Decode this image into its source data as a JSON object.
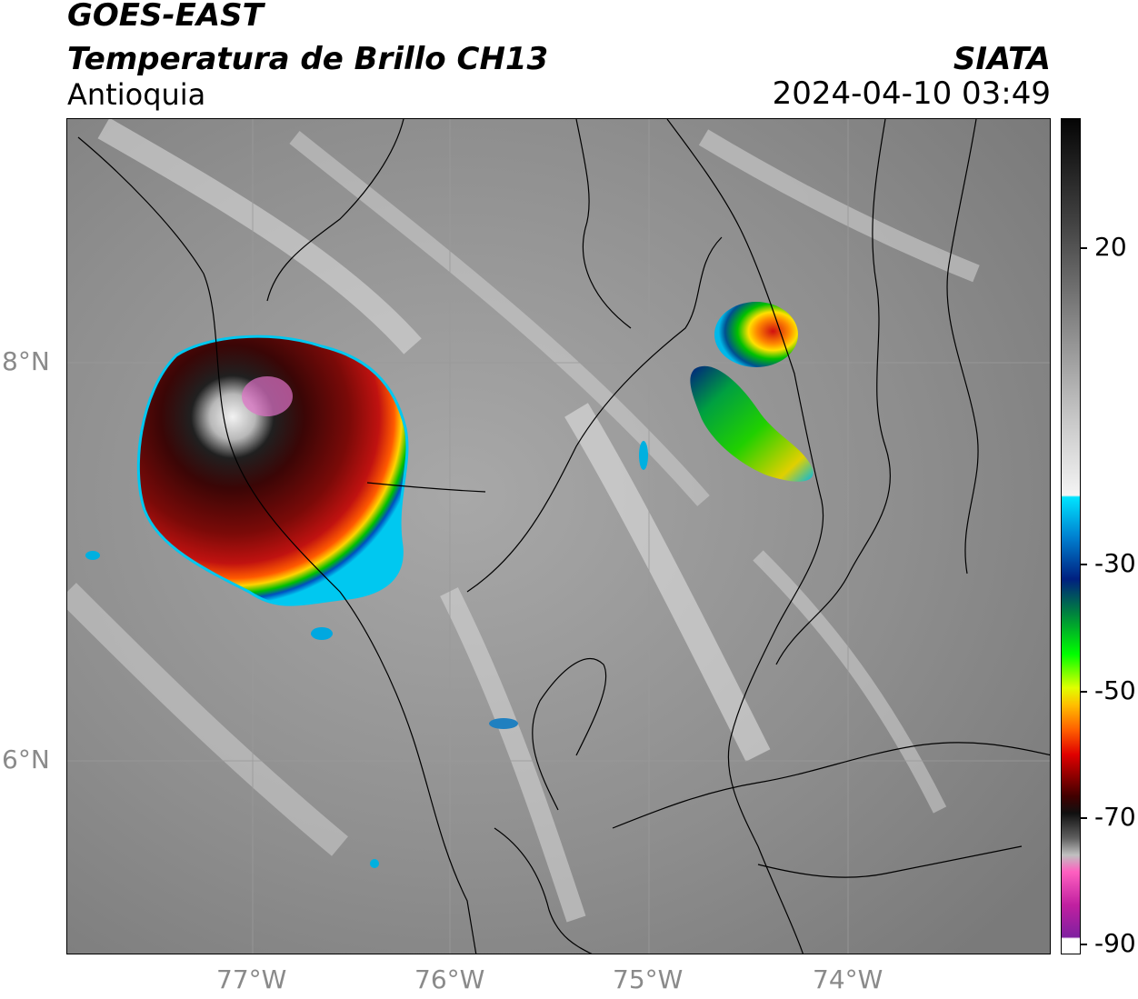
{
  "header": {
    "satellite": "GOES-EAST",
    "product": "Temperatura de Brillo CH13",
    "region": "Antioquia",
    "agency": "SIATA",
    "datetime": "2024-04-10 03:49"
  },
  "map": {
    "lat_ticks": [
      {
        "value": 8,
        "label": "8°N"
      },
      {
        "value": 6,
        "label": "6°N"
      }
    ],
    "lon_ticks": [
      {
        "value": -77,
        "label": "77°W"
      },
      {
        "value": -76,
        "label": "76°W"
      },
      {
        "value": -75,
        "label": "75°W"
      },
      {
        "value": -74,
        "label": "74°W"
      }
    ],
    "extent": {
      "lon_min": -77.94,
      "lon_max": -72.98,
      "lat_min": 5.03,
      "lat_max": 9.22
    },
    "gridlines": true,
    "colors": {
      "background_gray": "#8c8c8c",
      "boundary": "#000000"
    }
  },
  "colorbar": {
    "ticks": [
      {
        "value": 20,
        "label": "20"
      },
      {
        "value": -30,
        "label": "-30"
      },
      {
        "value": -50,
        "label": "-50"
      },
      {
        "value": -70,
        "label": "-70"
      },
      {
        "value": -90,
        "label": "-90"
      }
    ]
  }
}
